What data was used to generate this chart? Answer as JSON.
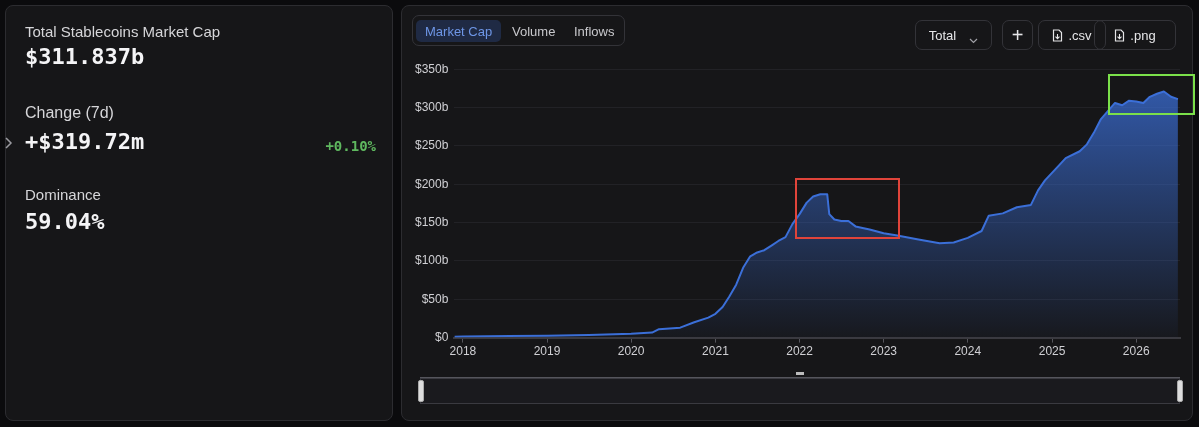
{
  "chart_data": [
    {
      "type": "other",
      "title": "Total Stablecoins Market Cap",
      "annotations": [
        "$311.837b",
        "Change (7d)",
        "+$319.72m",
        "+0.10%",
        "Dominance",
        "59.04%"
      ]
    },
    {
      "type": "area",
      "color": "#3b6fd8",
      "annotations": [
        "Market Cap",
        "Volume",
        "Inflows",
        "Total",
        "+",
        ".csv",
        ".png"
      ],
      "x": [
        "2017-11-25",
        "2018-01",
        "2019-01",
        "2019-07",
        "2020-01",
        "2020-04",
        "2020-05",
        "2020-08",
        "2020-10",
        "2020-12",
        "2021-01",
        "2021-02",
        "2021-03",
        "2021-04",
        "2021-05",
        "2021-06",
        "2021-07",
        "2021-08",
        "2021-09",
        "2021-10",
        "2021-11",
        "2021-12",
        "2022-01",
        "2022-02",
        "2022-03",
        "2022-04",
        "2022-05",
        "2022-05-10",
        "2022-06",
        "2022-07",
        "2022-08",
        "2022-09",
        "2022-11",
        "2023-01",
        "2023-03",
        "2023-06",
        "2023-09",
        "2023-11",
        "2024-01",
        "2024-03",
        "2024-04",
        "2024-06",
        "2024-08",
        "2024-10",
        "2024-11",
        "2024-12",
        "2025-02",
        "2025-03",
        "2025-05",
        "2025-06",
        "2025-07",
        "2025-08",
        "2025-10",
        "2025-11",
        "2025-12",
        "2026-01",
        "2026-02",
        "2026-03",
        "2026-04",
        "2026-05",
        "2026-06",
        "2026-07"
      ],
      "values": [
        1,
        1.5,
        2.5,
        3.5,
        5,
        6.6,
        11,
        13,
        20,
        26,
        31,
        40,
        53,
        69,
        91,
        106,
        111,
        114,
        120,
        126,
        131,
        148,
        161,
        176,
        184,
        187,
        187,
        161,
        154,
        152,
        152,
        145,
        141,
        136,
        133,
        128,
        123,
        124,
        130,
        139,
        159,
        162,
        170,
        173,
        192,
        205,
        225,
        234,
        243,
        252,
        267,
        285,
        306,
        303,
        309,
        308,
        306,
        314,
        318,
        321,
        314,
        311
      ],
      "xlim": [
        "2017-11-25",
        "2026-07-10"
      ],
      "xticks": [
        "2018",
        "2019",
        "2020",
        "2021",
        "2022",
        "2023",
        "2024",
        "2025",
        "2026"
      ],
      "ylim": [
        0,
        350
      ],
      "yticks": [
        {
          "value": 0,
          "label": "$0"
        },
        {
          "value": 50,
          "label": "$50b"
        },
        {
          "value": 100,
          "label": "$100b"
        },
        {
          "value": 150,
          "label": "$150b"
        },
        {
          "value": 200,
          "label": "$200b"
        },
        {
          "value": 250,
          "label": "$250b"
        },
        {
          "value": 300,
          "label": "$300b"
        },
        {
          "value": 350,
          "label": "$350b"
        }
      ],
      "grid": "y",
      "legend": false
    }
  ]
}
